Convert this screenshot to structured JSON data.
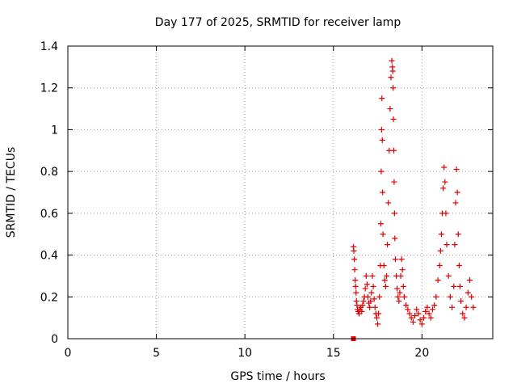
{
  "chart_data": {
    "type": "scatter",
    "title": "Day 177 of 2025, SRMTID for receiver lamp",
    "xlabel": "GPS time / hours",
    "ylabel": "SRMTID / TECUs",
    "xlim": [
      0,
      24
    ],
    "ylim": [
      0,
      1.4
    ],
    "x_ticks": [
      0,
      5,
      10,
      15,
      20
    ],
    "x_tick_labels": [
      "0",
      "5",
      "10",
      "15",
      "20"
    ],
    "y_ticks": [
      0,
      0.2,
      0.4,
      0.6,
      0.8,
      1.0,
      1.2,
      1.4
    ],
    "y_tick_labels": [
      "0",
      "0.2",
      "0.4",
      "0.6",
      "0.8",
      "1",
      "1.2",
      "1.4"
    ],
    "grid": true,
    "colors": {
      "series": "#e00000",
      "grid": "#a0a0a0",
      "frame": "#000000"
    },
    "series": [
      {
        "name": "SRMTID",
        "marker": "plus",
        "x": [
          16.13,
          16.15,
          16.18,
          16.2,
          16.23,
          16.25,
          16.28,
          16.3,
          16.33,
          16.36,
          16.4,
          16.45,
          16.5,
          16.55,
          16.6,
          16.65,
          16.7,
          16.75,
          16.8,
          16.85,
          16.9,
          16.95,
          17.0,
          17.05,
          17.1,
          17.15,
          17.2,
          17.25,
          17.3,
          17.35,
          17.4,
          17.45,
          17.5,
          17.55,
          17.6,
          17.65,
          17.68,
          17.7,
          17.72,
          17.74,
          17.76,
          17.78,
          17.8,
          17.85,
          17.9,
          17.95,
          18.0,
          18.05,
          18.1,
          18.15,
          18.2,
          18.25,
          18.3,
          18.33,
          18.35,
          18.37,
          18.39,
          18.41,
          18.43,
          18.45,
          18.47,
          18.5,
          18.55,
          18.6,
          18.65,
          18.7,
          18.75,
          18.8,
          18.85,
          18.9,
          18.95,
          19.0,
          19.1,
          19.2,
          19.3,
          19.4,
          19.5,
          19.6,
          19.7,
          19.8,
          19.9,
          20.0,
          20.1,
          20.2,
          20.3,
          20.4,
          20.5,
          20.6,
          20.7,
          20.8,
          20.9,
          21.0,
          21.05,
          21.1,
          21.15,
          21.2,
          21.25,
          21.3,
          21.35,
          21.4,
          21.5,
          21.6,
          21.7,
          21.8,
          21.85,
          21.9,
          21.95,
          22.0,
          22.05,
          22.1,
          22.15,
          22.2,
          22.3,
          22.4,
          22.5,
          22.6,
          22.7,
          22.8,
          22.9
        ],
        "y": [
          0.44,
          0.42,
          0.38,
          0.33,
          0.28,
          0.25,
          0.22,
          0.18,
          0.16,
          0.14,
          0.13,
          0.12,
          0.14,
          0.15,
          0.13,
          0.16,
          0.18,
          0.2,
          0.24,
          0.3,
          0.26,
          0.2,
          0.17,
          0.15,
          0.18,
          0.22,
          0.3,
          0.25,
          0.19,
          0.15,
          0.12,
          0.1,
          0.07,
          0.12,
          0.2,
          0.35,
          0.55,
          0.8,
          1.0,
          1.15,
          0.95,
          0.7,
          0.5,
          0.35,
          0.28,
          0.25,
          0.3,
          0.45,
          0.65,
          0.9,
          1.1,
          1.25,
          1.33,
          1.3,
          1.28,
          1.2,
          1.05,
          0.9,
          0.75,
          0.6,
          0.48,
          0.38,
          0.3,
          0.24,
          0.2,
          0.18,
          0.22,
          0.3,
          0.38,
          0.33,
          0.25,
          0.2,
          0.16,
          0.14,
          0.12,
          0.1,
          0.08,
          0.11,
          0.14,
          0.12,
          0.09,
          0.07,
          0.1,
          0.13,
          0.15,
          0.12,
          0.1,
          0.14,
          0.16,
          0.2,
          0.28,
          0.35,
          0.42,
          0.5,
          0.6,
          0.72,
          0.82,
          0.75,
          0.6,
          0.45,
          0.3,
          0.2,
          0.15,
          0.25,
          0.45,
          0.65,
          0.81,
          0.7,
          0.5,
          0.35,
          0.25,
          0.18,
          0.12,
          0.1,
          0.15,
          0.22,
          0.28,
          0.2,
          0.15
        ]
      }
    ],
    "outlier_marker": {
      "x": 16.13,
      "y": 0.0,
      "marker": "square"
    }
  }
}
